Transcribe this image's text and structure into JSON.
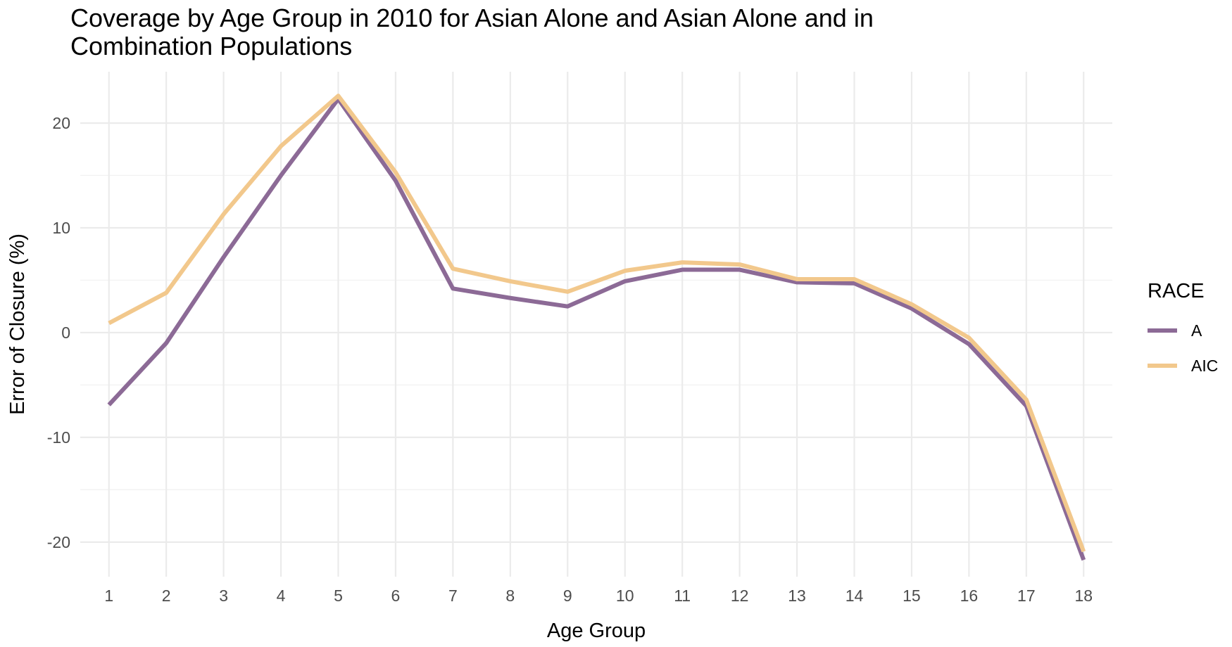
{
  "chart_data": {
    "type": "line",
    "title_lines": [
      "Coverage by Age Group in 2010 for Asian Alone and Asian Alone and in",
      "Combination Populations"
    ],
    "xlabel": "Age Group",
    "ylabel": "Error of Closure (%)",
    "x": [
      1,
      2,
      3,
      4,
      5,
      6,
      7,
      8,
      9,
      10,
      11,
      12,
      13,
      14,
      15,
      16,
      17,
      18
    ],
    "x_tick_labels": [
      "1",
      "2",
      "3",
      "4",
      "5",
      "6",
      "7",
      "8",
      "9",
      "10",
      "11",
      "12",
      "13",
      "14",
      "15",
      "16",
      "17",
      "18"
    ],
    "y_ticks": [
      20,
      10,
      0,
      -10,
      -20
    ],
    "y_tick_labels": [
      "20",
      "10",
      "0",
      "-10",
      "-20"
    ],
    "xlim": [
      0.5,
      18.5
    ],
    "ylim": [
      -23.3,
      24.9
    ],
    "grid": true,
    "legend": {
      "title": "RACE",
      "placement": "right"
    },
    "series": [
      {
        "name": "A",
        "color": "#8c6a96",
        "values": [
          -6.9,
          -1.0,
          7.2,
          15.0,
          22.3,
          14.5,
          4.2,
          3.3,
          2.5,
          4.9,
          6.0,
          6.0,
          4.8,
          4.7,
          2.3,
          -1.1,
          -7.0,
          -21.7
        ]
      },
      {
        "name": "AIC",
        "color": "#f2c88c",
        "values": [
          0.9,
          3.8,
          11.3,
          17.8,
          22.6,
          15.3,
          6.1,
          4.9,
          3.9,
          5.9,
          6.7,
          6.5,
          5.1,
          5.1,
          2.7,
          -0.5,
          -6.4,
          -20.9
        ]
      }
    ]
  }
}
